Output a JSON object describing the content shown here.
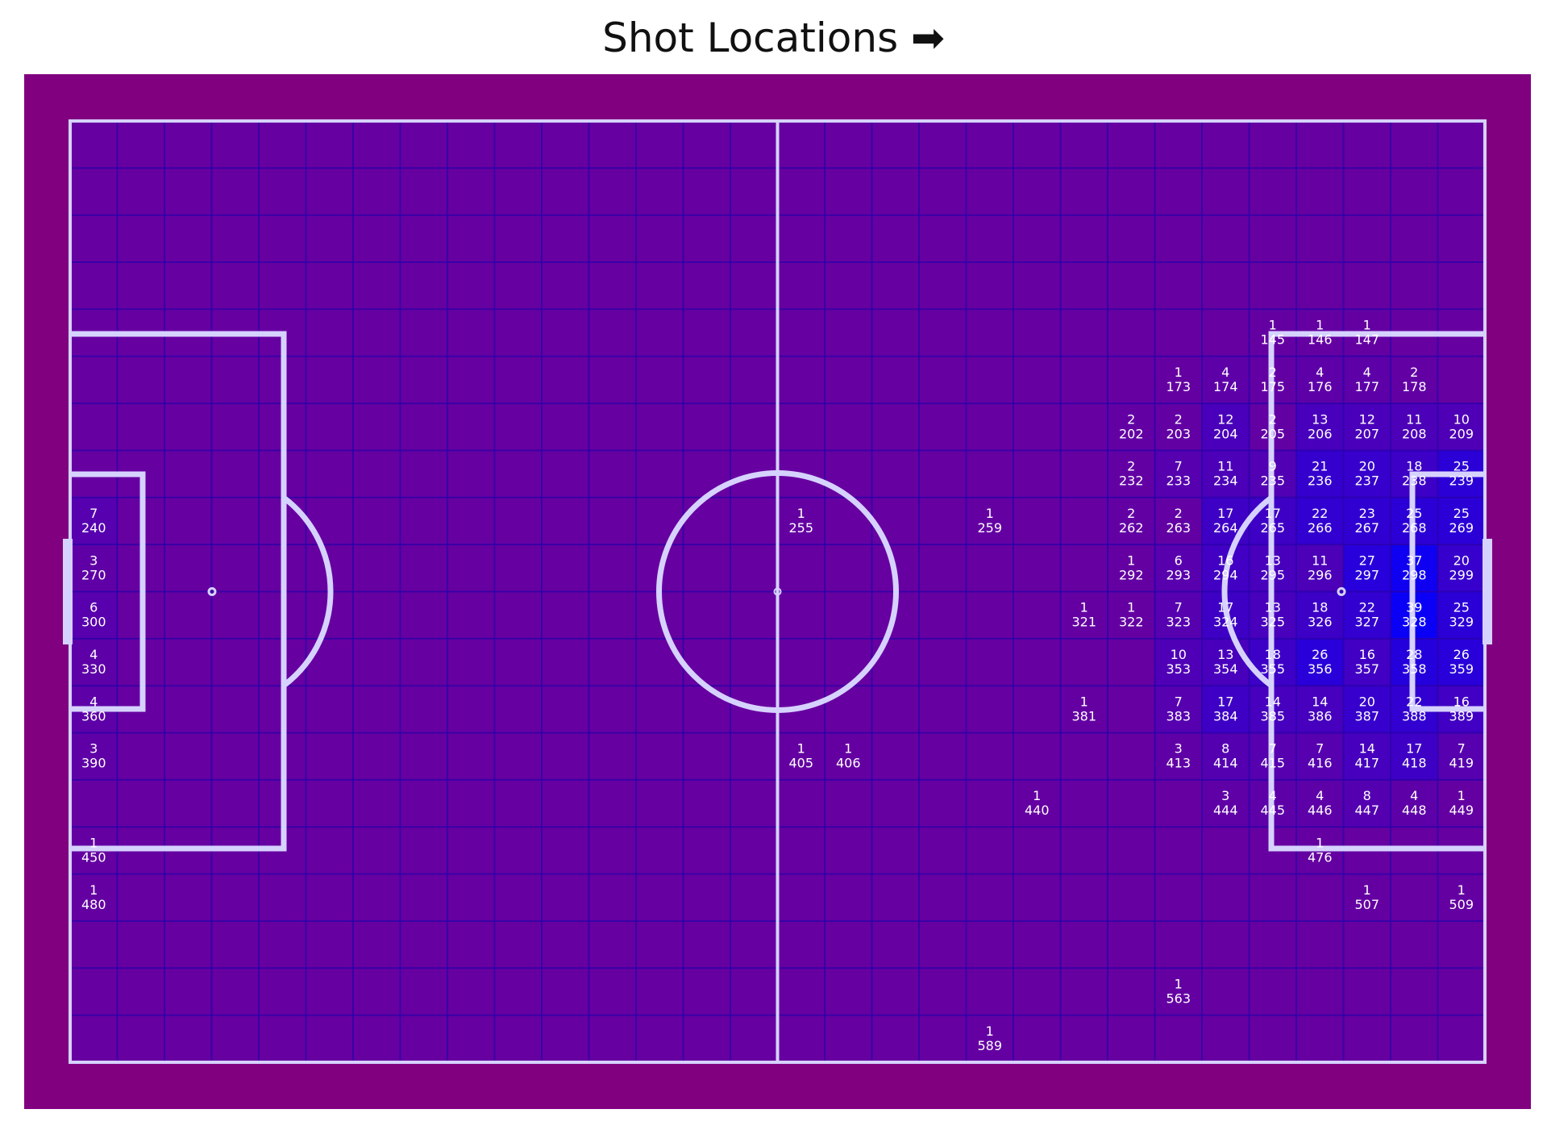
{
  "chart_data": {
    "type": "heatmap",
    "title": "Shot Locations ➡",
    "grid": {
      "columns": 30,
      "rows": 20
    },
    "colors": {
      "background": "#800080",
      "pitch": "#6700a0",
      "grid_line": "#2a00aa",
      "pitch_line": "#d6d2ff",
      "text": "#ffffff",
      "cell_color": "#0000ff"
    },
    "count_max": 39,
    "cells": [
      {
        "zone": 145,
        "count": 1
      },
      {
        "zone": 146,
        "count": 1
      },
      {
        "zone": 147,
        "count": 1
      },
      {
        "zone": 173,
        "count": 1
      },
      {
        "zone": 174,
        "count": 4
      },
      {
        "zone": 175,
        "count": 2
      },
      {
        "zone": 176,
        "count": 4
      },
      {
        "zone": 177,
        "count": 4
      },
      {
        "zone": 178,
        "count": 2
      },
      {
        "zone": 202,
        "count": 2
      },
      {
        "zone": 203,
        "count": 2
      },
      {
        "zone": 204,
        "count": 12
      },
      {
        "zone": 205,
        "count": 2
      },
      {
        "zone": 206,
        "count": 13
      },
      {
        "zone": 207,
        "count": 12
      },
      {
        "zone": 208,
        "count": 11
      },
      {
        "zone": 209,
        "count": 10
      },
      {
        "zone": 232,
        "count": 2
      },
      {
        "zone": 233,
        "count": 7
      },
      {
        "zone": 234,
        "count": 11
      },
      {
        "zone": 235,
        "count": 9
      },
      {
        "zone": 236,
        "count": 21
      },
      {
        "zone": 237,
        "count": 20
      },
      {
        "zone": 238,
        "count": 18
      },
      {
        "zone": 239,
        "count": 25
      },
      {
        "zone": 240,
        "count": 7
      },
      {
        "zone": 255,
        "count": 1
      },
      {
        "zone": 259,
        "count": 1
      },
      {
        "zone": 262,
        "count": 2
      },
      {
        "zone": 263,
        "count": 2
      },
      {
        "zone": 264,
        "count": 17
      },
      {
        "zone": 265,
        "count": 17
      },
      {
        "zone": 266,
        "count": 22
      },
      {
        "zone": 267,
        "count": 23
      },
      {
        "zone": 268,
        "count": 25
      },
      {
        "zone": 269,
        "count": 25
      },
      {
        "zone": 270,
        "count": 3
      },
      {
        "zone": 292,
        "count": 1
      },
      {
        "zone": 293,
        "count": 6
      },
      {
        "zone": 294,
        "count": 16
      },
      {
        "zone": 295,
        "count": 13
      },
      {
        "zone": 296,
        "count": 11
      },
      {
        "zone": 297,
        "count": 27
      },
      {
        "zone": 298,
        "count": 37
      },
      {
        "zone": 299,
        "count": 20
      },
      {
        "zone": 300,
        "count": 6
      },
      {
        "zone": 321,
        "count": 1
      },
      {
        "zone": 322,
        "count": 1
      },
      {
        "zone": 323,
        "count": 7
      },
      {
        "zone": 324,
        "count": 17
      },
      {
        "zone": 325,
        "count": 13
      },
      {
        "zone": 326,
        "count": 18
      },
      {
        "zone": 327,
        "count": 22
      },
      {
        "zone": 328,
        "count": 39
      },
      {
        "zone": 329,
        "count": 25
      },
      {
        "zone": 330,
        "count": 4
      },
      {
        "zone": 353,
        "count": 10
      },
      {
        "zone": 354,
        "count": 13
      },
      {
        "zone": 355,
        "count": 18
      },
      {
        "zone": 356,
        "count": 26
      },
      {
        "zone": 357,
        "count": 16
      },
      {
        "zone": 358,
        "count": 28
      },
      {
        "zone": 359,
        "count": 26
      },
      {
        "zone": 360,
        "count": 4
      },
      {
        "zone": 381,
        "count": 1
      },
      {
        "zone": 383,
        "count": 7
      },
      {
        "zone": 384,
        "count": 17
      },
      {
        "zone": 385,
        "count": 14
      },
      {
        "zone": 386,
        "count": 14
      },
      {
        "zone": 387,
        "count": 20
      },
      {
        "zone": 388,
        "count": 22
      },
      {
        "zone": 389,
        "count": 16
      },
      {
        "zone": 390,
        "count": 3
      },
      {
        "zone": 405,
        "count": 1
      },
      {
        "zone": 406,
        "count": 1
      },
      {
        "zone": 413,
        "count": 3
      },
      {
        "zone": 414,
        "count": 8
      },
      {
        "zone": 415,
        "count": 7
      },
      {
        "zone": 416,
        "count": 7
      },
      {
        "zone": 417,
        "count": 14
      },
      {
        "zone": 418,
        "count": 17
      },
      {
        "zone": 419,
        "count": 7
      },
      {
        "zone": 440,
        "count": 1
      },
      {
        "zone": 444,
        "count": 3
      },
      {
        "zone": 445,
        "count": 4
      },
      {
        "zone": 446,
        "count": 4
      },
      {
        "zone": 447,
        "count": 8
      },
      {
        "zone": 448,
        "count": 4
      },
      {
        "zone": 449,
        "count": 1
      },
      {
        "zone": 450,
        "count": 1
      },
      {
        "zone": 476,
        "count": 1
      },
      {
        "zone": 480,
        "count": 1
      },
      {
        "zone": 507,
        "count": 1
      },
      {
        "zone": 509,
        "count": 1
      },
      {
        "zone": 563,
        "count": 1
      },
      {
        "zone": 589,
        "count": 1
      }
    ]
  }
}
